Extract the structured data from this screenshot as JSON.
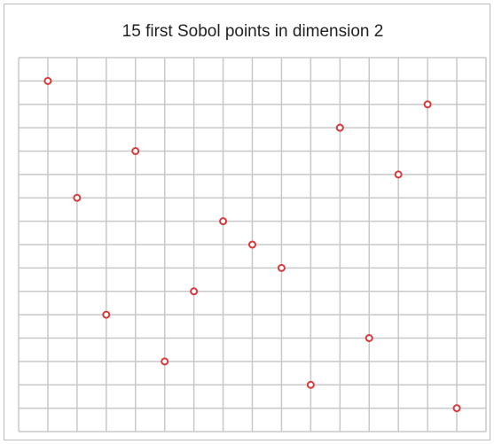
{
  "chart_data": {
    "type": "scatter",
    "title": "15 first Sobol points in dimension 2",
    "x": [
      0.0625,
      0.125,
      0.1875,
      0.25,
      0.3125,
      0.375,
      0.4375,
      0.5,
      0.5625,
      0.625,
      0.6875,
      0.75,
      0.8125,
      0.875,
      0.9375
    ],
    "values": [
      0.9375,
      0.625,
      0.3125,
      0.75,
      0.1875,
      0.375,
      0.5625,
      0.5,
      0.4375,
      0.125,
      0.8125,
      0.25,
      0.6875,
      0.875,
      0.0625
    ],
    "color": "#d9373a",
    "xlim": [
      0,
      1
    ],
    "ylim": [
      0,
      1
    ],
    "xticks": [
      0,
      0.0625,
      0.125,
      0.1875,
      0.25,
      0.3125,
      0.375,
      0.4375,
      0.5,
      0.5625,
      0.625,
      0.6875,
      0.75,
      0.8125,
      0.875,
      0.9375,
      1
    ],
    "yticks": [
      0,
      0.0625,
      0.125,
      0.1875,
      0.25,
      0.3125,
      0.375,
      0.4375,
      0.5,
      0.5625,
      0.625,
      0.6875,
      0.75,
      0.8125,
      0.875,
      0.9375,
      1
    ],
    "grid": true
  }
}
